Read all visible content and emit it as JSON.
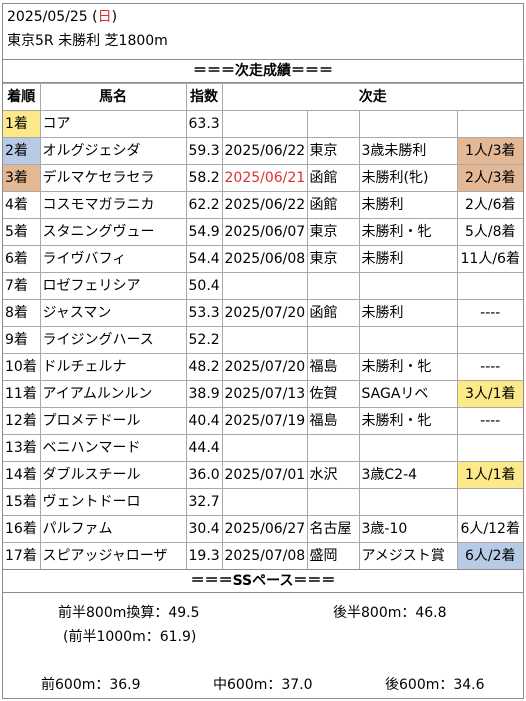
{
  "header": {
    "date_prefix": "2025/05/25 (",
    "weekday": "日",
    "date_suffix": ")",
    "race": "東京5R 未勝利 芝1800m"
  },
  "results_title": "＝＝＝次走成績＝＝＝",
  "columns": {
    "rank": "着順",
    "horse": "馬名",
    "index": "指数",
    "next": "次走"
  },
  "rows": [
    {
      "rank": "1着",
      "horse": "コア",
      "index": "63.3",
      "date": "",
      "place": "",
      "race": "",
      "result": ""
    },
    {
      "rank": "2着",
      "horse": "オルグジェシダ",
      "index": "59.3",
      "date": "2025/06/22",
      "place": "東京",
      "race": "3歳未勝利",
      "result": "1人/3着"
    },
    {
      "rank": "3着",
      "horse": "デルマケセラセラ",
      "index": "58.2",
      "date": "2025/06/21",
      "place": "函館",
      "race": "未勝利(牝)",
      "result": "2人/3着"
    },
    {
      "rank": "4着",
      "horse": "コスモマガラニカ",
      "index": "62.2",
      "date": "2025/06/22",
      "place": "函館",
      "race": "未勝利",
      "result": "2人/6着"
    },
    {
      "rank": "5着",
      "horse": "スタニングヴュー",
      "index": "54.9",
      "date": "2025/06/07",
      "place": "東京",
      "race": "未勝利・牝",
      "result": "5人/8着"
    },
    {
      "rank": "6着",
      "horse": "ライヴバフィ",
      "index": "54.4",
      "date": "2025/06/08",
      "place": "東京",
      "race": "未勝利",
      "result": "11人/6着"
    },
    {
      "rank": "7着",
      "horse": "ロゼフェリシア",
      "index": "50.4",
      "date": "",
      "place": "",
      "race": "",
      "result": ""
    },
    {
      "rank": "8着",
      "horse": "ジャスマン",
      "index": "53.3",
      "date": "2025/07/20",
      "place": "函館",
      "race": "未勝利",
      "result": "----"
    },
    {
      "rank": "9着",
      "horse": "ライジングハース",
      "index": "52.2",
      "date": "",
      "place": "",
      "race": "",
      "result": ""
    },
    {
      "rank": "10着",
      "horse": "ドルチェルナ",
      "index": "48.2",
      "date": "2025/07/20",
      "place": "福島",
      "race": "未勝利・牝",
      "result": "----"
    },
    {
      "rank": "11着",
      "horse": "アイアムルンルン",
      "index": "38.9",
      "date": "2025/07/13",
      "place": "佐賀",
      "race": "SAGAリベ",
      "result": "3人/1着"
    },
    {
      "rank": "12着",
      "horse": "プロメテドール",
      "index": "40.4",
      "date": "2025/07/19",
      "place": "福島",
      "race": "未勝利・牝",
      "result": "----"
    },
    {
      "rank": "13着",
      "horse": "ベニハンマード",
      "index": "44.4",
      "date": "",
      "place": "",
      "race": "",
      "result": ""
    },
    {
      "rank": "14着",
      "horse": "ダブルスチール",
      "index": "36.0",
      "date": "2025/07/01",
      "place": "水沢",
      "race": "3歳C2-4",
      "result": "1人/1着"
    },
    {
      "rank": "15着",
      "horse": "ヴェントドーロ",
      "index": "32.7",
      "date": "",
      "place": "",
      "race": "",
      "result": ""
    },
    {
      "rank": "16着",
      "horse": "パルファム",
      "index": "30.4",
      "date": "2025/06/27",
      "place": "名古屋",
      "race": "3歳-10",
      "result": "6人/12着"
    },
    {
      "rank": "17着",
      "horse": "スピアッジャローザ",
      "index": "19.3",
      "date": "2025/07/08",
      "place": "盛岡",
      "race": "アメジスト賞",
      "result": "6人/2着"
    }
  ],
  "highlight_colors": {
    "gold": "#fde98a",
    "blue": "#b8cbe6",
    "orange": "#e4b895",
    "red_text": "#e03030"
  },
  "pace_title": "＝＝＝SSペース＝＝＝",
  "pace": {
    "first800": "前半800m換算：49.5",
    "last800": "後半800m：46.8",
    "first1000": "(前半1000m：61.9)",
    "front600": "前600m：36.9",
    "mid600": "中600m：37.0",
    "back600": "後600m：34.6"
  }
}
